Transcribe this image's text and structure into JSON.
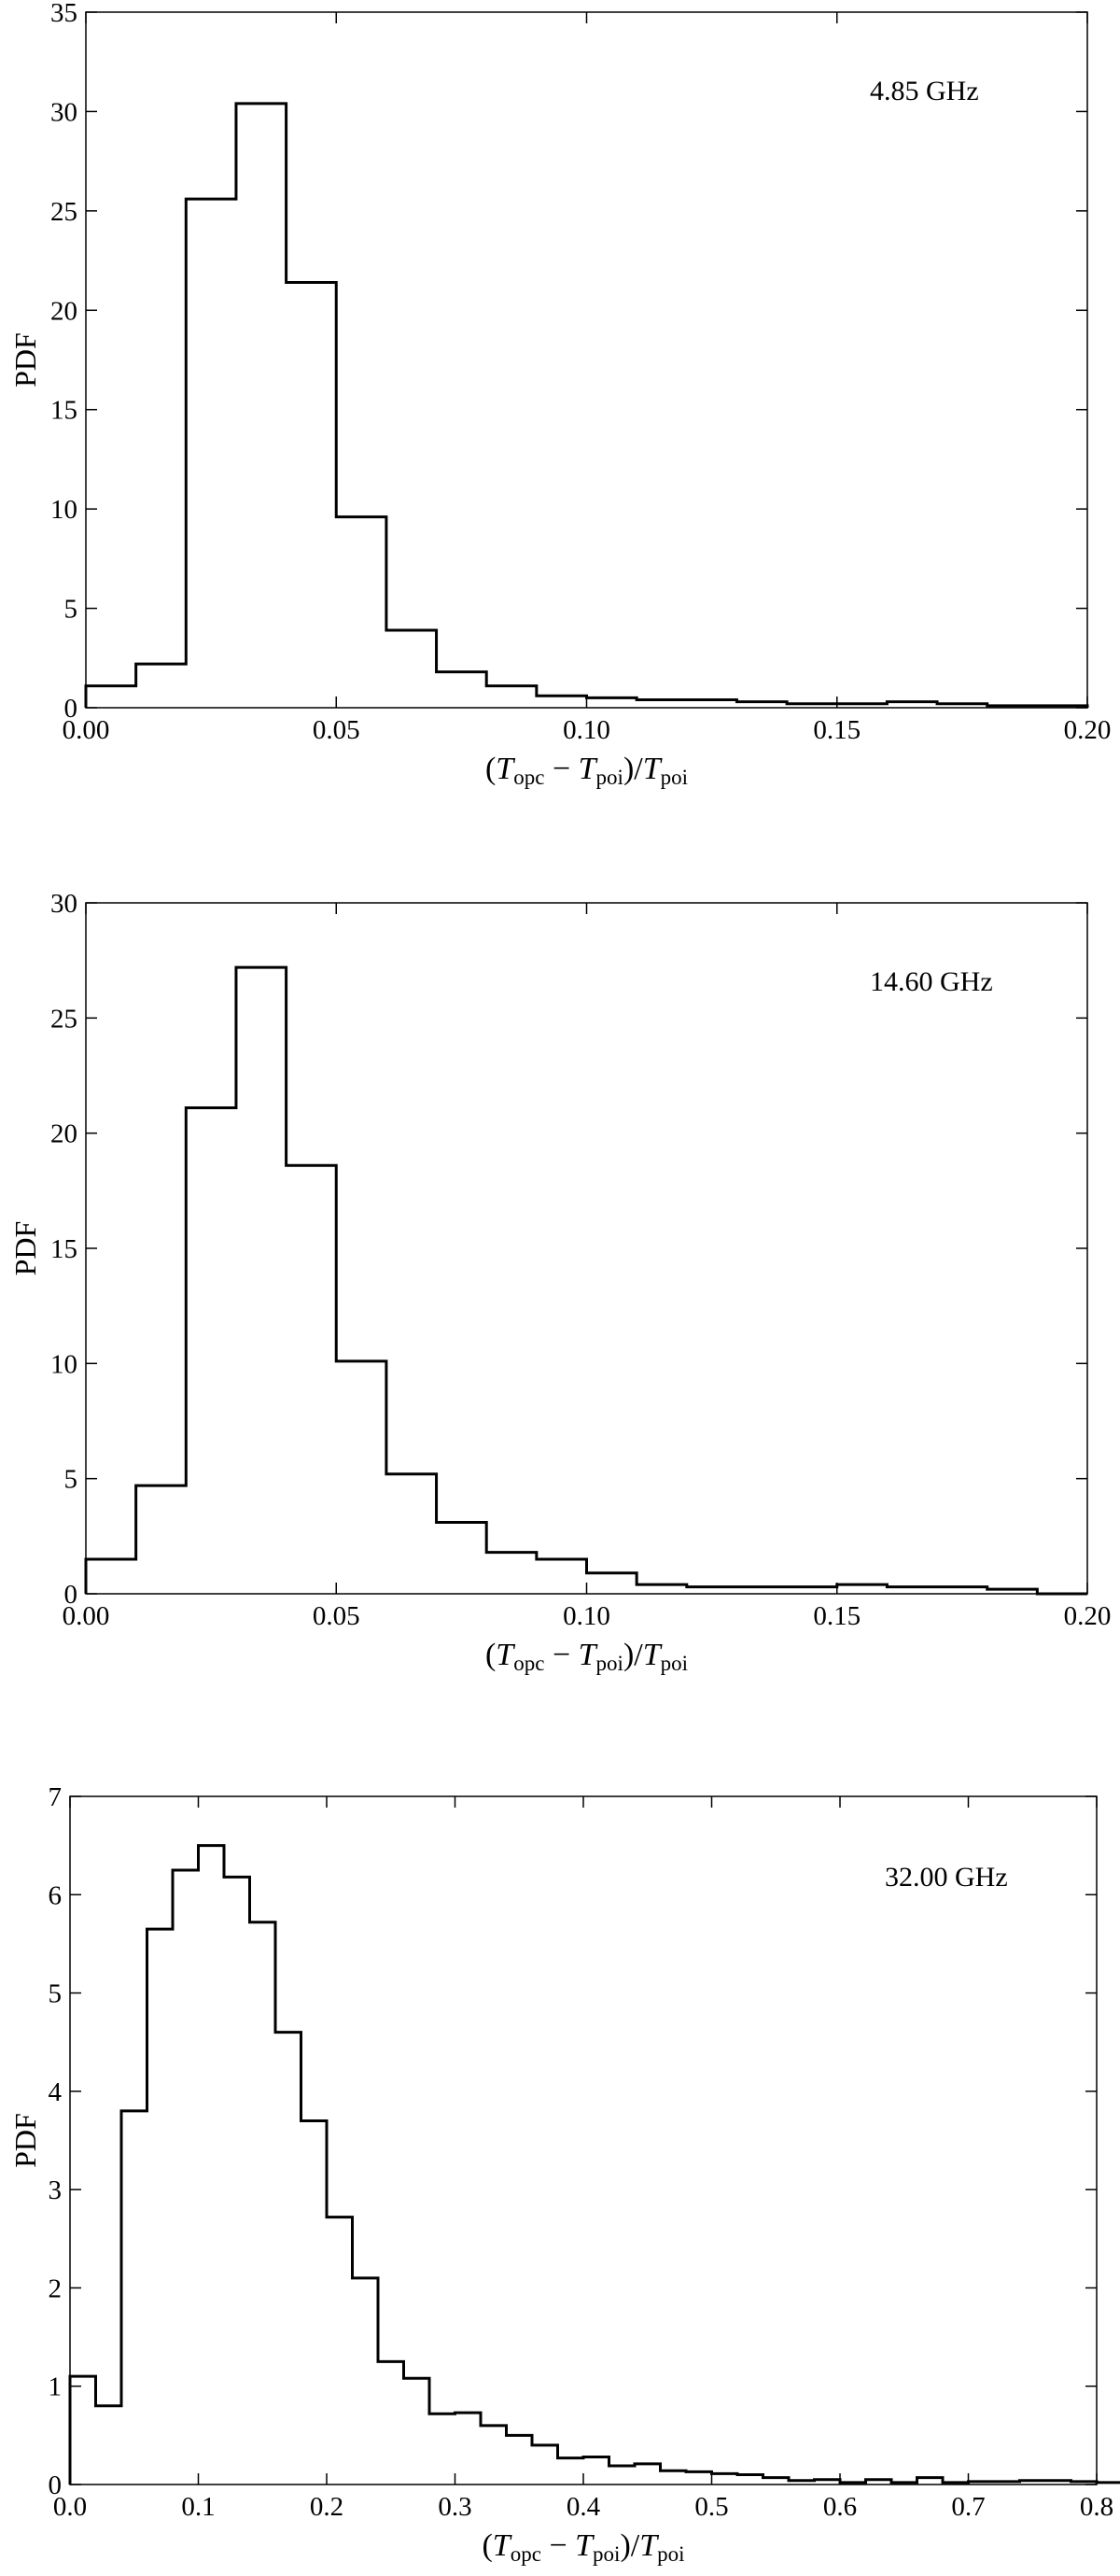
{
  "chart_data": [
    {
      "type": "bar",
      "histogram": true,
      "annotation": "4.85 GHz",
      "ylabel": "PDF",
      "xlabel": {
        "open": "(",
        "T1": "T",
        "s1": "opc",
        "minus": " − ",
        "T2": "T",
        "s2": "poi",
        "close": ")/",
        "T3": "T",
        "s3": "poi"
      },
      "xlim": [
        0.0,
        0.2
      ],
      "ylim": [
        0,
        35
      ],
      "x_ticks": [
        "0.00",
        "0.05",
        "0.10",
        "0.15",
        "0.20"
      ],
      "y_ticks": [
        "0",
        "5",
        "10",
        "15",
        "20",
        "25",
        "30",
        "35"
      ],
      "bin_width": 0.01,
      "bin_edges_start": 0.0,
      "values": [
        1.1,
        2.2,
        25.6,
        30.4,
        21.4,
        9.6,
        3.9,
        1.8,
        1.1,
        0.6,
        0.5,
        0.4,
        0.4,
        0.3,
        0.2,
        0.2,
        0.3,
        0.2,
        0.1,
        0.1
      ]
    },
    {
      "type": "bar",
      "histogram": true,
      "annotation": "14.60 GHz",
      "ylabel": "PDF",
      "xlabel": {
        "open": "(",
        "T1": "T",
        "s1": "opc",
        "minus": " − ",
        "T2": "T",
        "s2": "poi",
        "close": ")/",
        "T3": "T",
        "s3": "poi"
      },
      "xlim": [
        0.0,
        0.2
      ],
      "ylim": [
        0,
        30
      ],
      "x_ticks": [
        "0.00",
        "0.05",
        "0.10",
        "0.15",
        "0.20"
      ],
      "y_ticks": [
        "0",
        "5",
        "10",
        "15",
        "20",
        "25",
        "30"
      ],
      "bin_width": 0.01,
      "bin_edges_start": 0.0,
      "values": [
        1.5,
        4.7,
        21.1,
        27.2,
        18.6,
        10.1,
        5.2,
        3.1,
        1.8,
        1.5,
        0.9,
        0.4,
        0.3,
        0.3,
        0.3,
        0.4,
        0.3,
        0.3,
        0.2,
        0.0
      ]
    },
    {
      "type": "bar",
      "histogram": true,
      "annotation": "32.00 GHz",
      "ylabel": "PDF",
      "xlabel": {
        "open": "(",
        "T1": "T",
        "s1": "opc",
        "minus": " − ",
        "T2": "T",
        "s2": "poi",
        "close": ")/",
        "T3": "T",
        "s3": "poi"
      },
      "xlim": [
        0.0,
        0.8
      ],
      "ylim": [
        0,
        7
      ],
      "x_ticks": [
        "0.0",
        "0.1",
        "0.2",
        "0.3",
        "0.4",
        "0.5",
        "0.6",
        "0.7",
        "0.8"
      ],
      "y_ticks": [
        "0",
        "1",
        "2",
        "3",
        "4",
        "5",
        "6",
        "7"
      ],
      "bin_width": 0.02,
      "bin_edges_start": 0.0,
      "values": [
        1.1,
        0.8,
        3.8,
        5.65,
        6.25,
        6.5,
        6.18,
        5.72,
        4.6,
        3.7,
        2.72,
        2.1,
        1.25,
        1.08,
        0.72,
        0.73,
        0.6,
        0.5,
        0.4,
        0.27,
        0.28,
        0.19,
        0.21,
        0.14,
        0.13,
        0.11,
        0.1,
        0.07,
        0.04,
        0.05,
        0.02,
        0.05,
        0.02,
        0.07,
        0.02,
        0.03,
        0.03,
        0.04,
        0.04,
        0.03,
        0.02
      ]
    }
  ]
}
